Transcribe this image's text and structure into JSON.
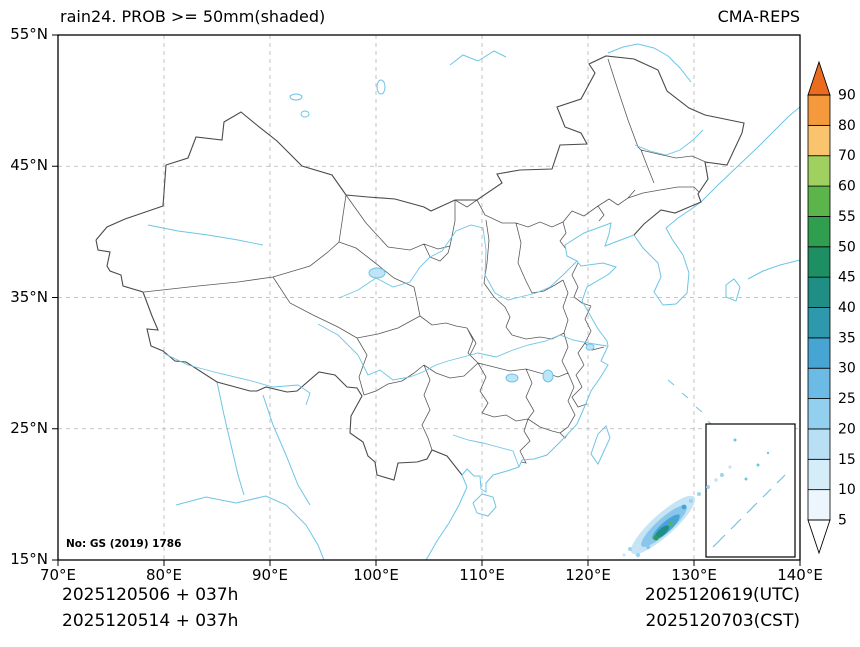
{
  "header": {
    "title_left": "rain24. PROB >= 50mm(shaded)",
    "title_right": "CMA-REPS"
  },
  "axes": {
    "x_ticks": [
      "70°E",
      "80°E",
      "90°E",
      "100°E",
      "110°E",
      "120°E",
      "130°E",
      "140°E"
    ],
    "y_ticks": [
      "55°N",
      "45°N",
      "35°N",
      "25°N",
      "15°N"
    ]
  },
  "colorbar": {
    "levels": [
      5,
      10,
      15,
      20,
      25,
      30,
      35,
      40,
      45,
      50,
      55,
      60,
      70,
      80,
      90
    ],
    "colors": [
      "#ffffff",
      "#ecf6fc",
      "#d5ecf9",
      "#b8dff4",
      "#93cfee",
      "#6cbbe4",
      "#46a5d2",
      "#2e99ad",
      "#1f8f85",
      "#1e8e63",
      "#2f9e4f",
      "#5cb54a",
      "#a0d05f",
      "#fac46e",
      "#f49a3c",
      "#ec6c1f"
    ]
  },
  "map": {
    "note": "No: GS (2019) 1786"
  },
  "footer": {
    "left_line1": "2025120506 + 037h",
    "left_line2": "2025120514 + 037h",
    "right_line1": "2025120619(UTC)",
    "right_line2": "2025120703(CST)"
  },
  "chart_data": {
    "type": "map",
    "title": "rain24. PROB >= 50mm(shaded)",
    "model": "CMA-REPS",
    "extent": {
      "lon": [
        70,
        140
      ],
      "lat": [
        15,
        55
      ]
    },
    "grid_deg": 10,
    "prob_levels_percent": [
      5,
      10,
      15,
      20,
      25,
      30,
      35,
      40,
      45,
      50,
      55,
      60,
      70,
      80,
      90
    ],
    "shaded_features": [
      {
        "description": "NE-SW oriented probability band over ocean southeast of Taiwan",
        "center_lon": 126.5,
        "center_lat": 17.5,
        "approx_max_band": "45-60"
      }
    ]
  }
}
